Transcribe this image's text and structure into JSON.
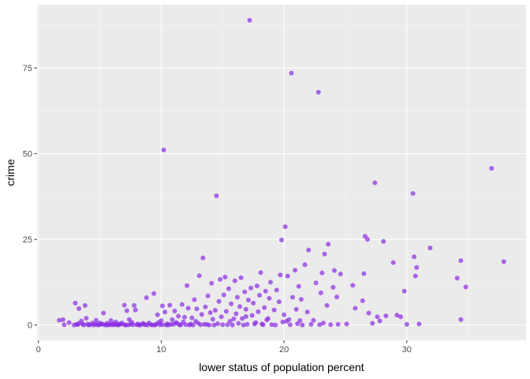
{
  "chart_data": {
    "type": "scatter",
    "title": "",
    "xlabel": "lower status of population percent",
    "ylabel": "crime",
    "xlim": [
      -0.11,
      39.71
    ],
    "ylim": [
      -4.45,
      93.44
    ],
    "x_ticks": [
      0,
      10,
      20,
      30
    ],
    "y_ticks": [
      0,
      25,
      50,
      75
    ],
    "grid": true,
    "legend": "none",
    "colors": {
      "panel_background": "#EBEBEB",
      "grid_major": "#FFFFFF",
      "grid_minor": "#F5F5F5",
      "point": "#8A2BE2"
    },
    "points": [
      [
        1.7,
        1.4
      ],
      [
        2.0,
        1.6
      ],
      [
        2.1,
        0.1
      ],
      [
        2.5,
        0.7
      ],
      [
        2.9,
        0.0
      ],
      [
        3.0,
        6.4
      ],
      [
        3.1,
        0.2
      ],
      [
        3.3,
        0.5
      ],
      [
        3.3,
        4.8
      ],
      [
        3.5,
        1.2
      ],
      [
        3.7,
        0.0
      ],
      [
        3.8,
        5.7
      ],
      [
        3.9,
        2.0
      ],
      [
        4.0,
        0.3
      ],
      [
        4.2,
        0.1
      ],
      [
        4.4,
        0.6
      ],
      [
        4.5,
        0.0
      ],
      [
        4.6,
        0.2
      ],
      [
        4.7,
        1.4
      ],
      [
        4.9,
        0.0
      ],
      [
        5.0,
        0.6
      ],
      [
        5.2,
        0.3
      ],
      [
        5.3,
        3.5
      ],
      [
        5.4,
        0.1
      ],
      [
        5.5,
        0.0
      ],
      [
        5.6,
        0.5
      ],
      [
        5.8,
        0.2
      ],
      [
        5.9,
        1.3
      ],
      [
        6.0,
        0.0
      ],
      [
        6.1,
        0.4
      ],
      [
        6.3,
        0.9
      ],
      [
        6.4,
        0.1
      ],
      [
        6.5,
        0.0
      ],
      [
        6.6,
        0.3
      ],
      [
        6.8,
        0.6
      ],
      [
        7.0,
        5.8
      ],
      [
        7.0,
        0.1
      ],
      [
        7.2,
        4.2
      ],
      [
        7.3,
        0.0
      ],
      [
        7.4,
        1.6
      ],
      [
        7.5,
        0.2
      ],
      [
        7.6,
        0.8
      ],
      [
        7.8,
        5.7
      ],
      [
        7.9,
        4.4
      ],
      [
        8.0,
        0.1
      ],
      [
        8.1,
        0.3
      ],
      [
        8.3,
        0.0
      ],
      [
        8.5,
        0.5
      ],
      [
        8.6,
        0.2
      ],
      [
        8.8,
        8.0
      ],
      [
        8.9,
        0.0
      ],
      [
        9.0,
        0.6
      ],
      [
        9.2,
        0.1
      ],
      [
        9.4,
        9.2
      ],
      [
        9.5,
        0.0
      ],
      [
        9.6,
        0.3
      ],
      [
        9.7,
        3.0
      ],
      [
        9.8,
        0.8
      ],
      [
        10.0,
        1.3
      ],
      [
        10.1,
        5.6
      ],
      [
        10.1,
        0.1
      ],
      [
        10.2,
        51.1
      ],
      [
        10.3,
        3.8
      ],
      [
        10.5,
        0.4
      ],
      [
        10.6,
        0.0
      ],
      [
        10.7,
        5.8
      ],
      [
        10.9,
        1.6
      ],
      [
        11.0,
        0.2
      ],
      [
        11.1,
        4.1
      ],
      [
        11.3,
        0.5
      ],
      [
        11.4,
        2.6
      ],
      [
        11.5,
        0.0
      ],
      [
        11.7,
        6.0
      ],
      [
        11.8,
        0.9
      ],
      [
        11.9,
        2.3
      ],
      [
        12.0,
        0.1
      ],
      [
        12.1,
        11.5
      ],
      [
        12.2,
        4.9
      ],
      [
        12.4,
        0.3
      ],
      [
        12.5,
        2.1
      ],
      [
        12.6,
        0.0
      ],
      [
        12.7,
        7.4
      ],
      [
        12.9,
        4.7
      ],
      [
        13.0,
        0.6
      ],
      [
        13.1,
        14.4
      ],
      [
        13.3,
        3.1
      ],
      [
        13.4,
        19.6
      ],
      [
        13.5,
        0.2
      ],
      [
        13.6,
        5.3
      ],
      [
        13.8,
        8.5
      ],
      [
        13.9,
        0.0
      ],
      [
        14.0,
        3.6
      ],
      [
        14.1,
        12.2
      ],
      [
        14.2,
        1.7
      ],
      [
        14.4,
        4.3
      ],
      [
        14.5,
        37.7
      ],
      [
        14.6,
        0.4
      ],
      [
        14.7,
        6.9
      ],
      [
        14.8,
        13.3
      ],
      [
        14.9,
        2.4
      ],
      [
        15.0,
        0.1
      ],
      [
        15.1,
        8.8
      ],
      [
        15.2,
        14.0
      ],
      [
        15.3,
        4.0
      ],
      [
        15.5,
        10.6
      ],
      [
        15.6,
        1.1
      ],
      [
        15.7,
        6.2
      ],
      [
        15.8,
        0.0
      ],
      [
        16.0,
        12.9
      ],
      [
        16.1,
        3.3
      ],
      [
        16.2,
        8.1
      ],
      [
        16.3,
        0.5
      ],
      [
        16.4,
        5.4
      ],
      [
        16.5,
        13.8
      ],
      [
        16.6,
        1.9
      ],
      [
        16.8,
        9.7
      ],
      [
        16.9,
        4.6
      ],
      [
        17.0,
        0.2
      ],
      [
        17.1,
        7.3
      ],
      [
        17.2,
        88.9
      ],
      [
        17.3,
        10.8
      ],
      [
        17.4,
        2.8
      ],
      [
        17.5,
        6.4
      ],
      [
        17.7,
        0.7
      ],
      [
        17.8,
        11.4
      ],
      [
        17.9,
        3.9
      ],
      [
        18.0,
        8.7
      ],
      [
        18.1,
        15.3
      ],
      [
        18.2,
        0.3
      ],
      [
        18.4,
        5.1
      ],
      [
        18.5,
        9.9
      ],
      [
        18.6,
        1.5
      ],
      [
        18.8,
        7.8
      ],
      [
        18.9,
        12.5
      ],
      [
        19.0,
        0.1
      ],
      [
        19.2,
        4.4
      ],
      [
        19.4,
        10.2
      ],
      [
        19.6,
        6.8
      ],
      [
        19.7,
        14.6
      ],
      [
        19.8,
        24.8
      ],
      [
        19.9,
        0.9
      ],
      [
        20.0,
        3.0
      ],
      [
        20.1,
        28.7
      ],
      [
        20.3,
        14.3
      ],
      [
        20.4,
        1.6
      ],
      [
        20.6,
        73.5
      ],
      [
        20.7,
        8.1
      ],
      [
        20.9,
        16.0
      ],
      [
        21.0,
        4.6
      ],
      [
        21.1,
        0.4
      ],
      [
        21.2,
        11.3
      ],
      [
        21.3,
        1.3
      ],
      [
        21.4,
        7.5
      ],
      [
        21.7,
        17.6
      ],
      [
        21.9,
        3.8
      ],
      [
        22.0,
        21.9
      ],
      [
        22.2,
        0.2
      ],
      [
        22.4,
        1.4
      ],
      [
        22.6,
        12.3
      ],
      [
        22.8,
        67.9
      ],
      [
        23.0,
        9.4
      ],
      [
        23.1,
        15.2
      ],
      [
        23.2,
        0.6
      ],
      [
        23.3,
        20.7
      ],
      [
        23.5,
        5.7
      ],
      [
        23.6,
        23.6
      ],
      [
        23.8,
        0.1
      ],
      [
        24.0,
        11.0
      ],
      [
        24.1,
        15.9
      ],
      [
        24.3,
        8.2
      ],
      [
        24.6,
        14.9
      ],
      [
        25.1,
        0.3
      ],
      [
        25.6,
        11.6
      ],
      [
        25.8,
        4.9
      ],
      [
        26.4,
        7.1
      ],
      [
        26.5,
        15.0
      ],
      [
        26.6,
        25.9
      ],
      [
        26.8,
        25.0
      ],
      [
        26.9,
        3.5
      ],
      [
        27.2,
        0.5
      ],
      [
        27.4,
        41.5
      ],
      [
        27.6,
        2.4
      ],
      [
        27.8,
        1.2
      ],
      [
        28.1,
        24.4
      ],
      [
        28.3,
        2.7
      ],
      [
        28.9,
        18.2
      ],
      [
        29.2,
        2.9
      ],
      [
        29.5,
        2.4
      ],
      [
        29.8,
        9.9
      ],
      [
        30.0,
        0.2
      ],
      [
        30.5,
        38.4
      ],
      [
        30.6,
        19.9
      ],
      [
        30.7,
        14.3
      ],
      [
        30.8,
        16.8
      ],
      [
        31.0,
        0.3
      ],
      [
        31.9,
        22.5
      ],
      [
        34.1,
        13.7
      ],
      [
        34.4,
        18.8
      ],
      [
        34.4,
        1.6
      ],
      [
        34.8,
        11.1
      ],
      [
        36.9,
        45.7
      ],
      [
        37.9,
        18.5
      ],
      [
        3.2,
        0.1
      ],
      [
        3.6,
        0.3
      ],
      [
        4.1,
        0.0
      ],
      [
        4.8,
        0.1
      ],
      [
        5.1,
        0.2
      ],
      [
        5.7,
        0.0
      ],
      [
        6.2,
        0.1
      ],
      [
        6.7,
        0.2
      ],
      [
        7.1,
        0.0
      ],
      [
        7.7,
        0.1
      ],
      [
        8.2,
        0.0
      ],
      [
        8.7,
        0.1
      ],
      [
        9.3,
        0.0
      ],
      [
        9.9,
        0.1
      ],
      [
        10.4,
        0.0
      ],
      [
        10.8,
        0.2
      ],
      [
        11.6,
        0.1
      ],
      [
        12.3,
        0.0
      ],
      [
        13.2,
        0.1
      ],
      [
        13.7,
        0.2
      ],
      [
        14.3,
        0.0
      ],
      [
        15.4,
        0.1
      ],
      [
        16.7,
        0.0
      ],
      [
        17.6,
        0.3
      ],
      [
        18.3,
        0.1
      ],
      [
        19.3,
        0.0
      ],
      [
        20.5,
        0.1
      ],
      [
        21.5,
        0.0
      ],
      [
        22.9,
        0.1
      ],
      [
        24.4,
        0.2
      ],
      [
        12.8,
        1.1
      ],
      [
        11.2,
        0.7
      ],
      [
        15.9,
        1.8
      ],
      [
        16.9,
        2.5
      ],
      [
        18.7,
        1.9
      ],
      [
        20.2,
        1.1
      ]
    ]
  }
}
